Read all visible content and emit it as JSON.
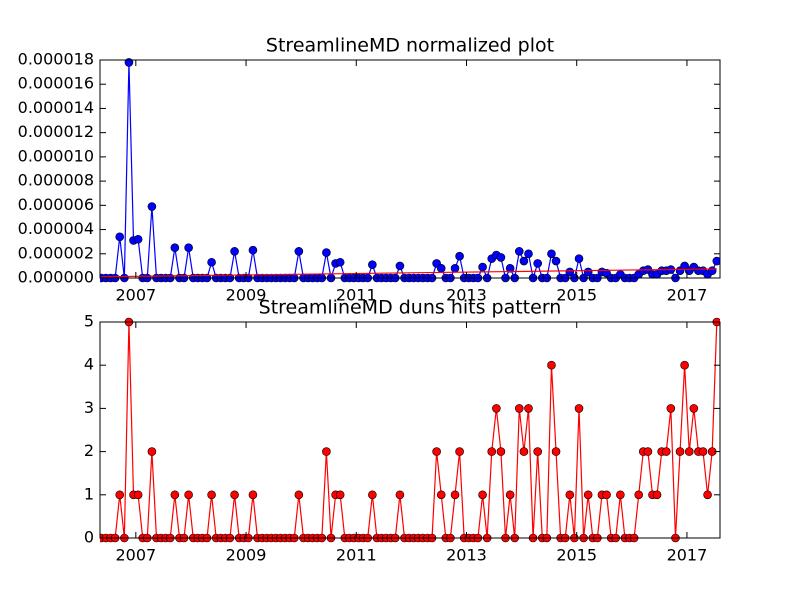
{
  "chart_data": [
    {
      "type": "line",
      "title": "StreamlineMD normalized plot",
      "x": [
        2006.375,
        2006.458,
        2006.542,
        2006.625,
        2006.708,
        2006.792,
        2006.875,
        2006.958,
        2007.042,
        2007.125,
        2007.208,
        2007.292,
        2007.375,
        2007.458,
        2007.542,
        2007.625,
        2007.708,
        2007.792,
        2007.875,
        2007.958,
        2008.042,
        2008.125,
        2008.208,
        2008.292,
        2008.375,
        2008.458,
        2008.542,
        2008.625,
        2008.708,
        2008.792,
        2008.875,
        2008.958,
        2009.042,
        2009.125,
        2009.208,
        2009.292,
        2009.375,
        2009.458,
        2009.542,
        2009.625,
        2009.708,
        2009.792,
        2009.875,
        2009.958,
        2010.042,
        2010.125,
        2010.208,
        2010.292,
        2010.375,
        2010.458,
        2010.542,
        2010.625,
        2010.708,
        2010.792,
        2010.875,
        2010.958,
        2011.042,
        2011.125,
        2011.208,
        2011.292,
        2011.375,
        2011.458,
        2011.542,
        2011.625,
        2011.708,
        2011.792,
        2011.875,
        2011.958,
        2012.042,
        2012.125,
        2012.208,
        2012.292,
        2012.375,
        2012.458,
        2012.542,
        2012.625,
        2012.708,
        2012.792,
        2012.875,
        2012.958,
        2013.042,
        2013.125,
        2013.208,
        2013.292,
        2013.375,
        2013.458,
        2013.542,
        2013.625,
        2013.708,
        2013.792,
        2013.875,
        2013.958,
        2014.042,
        2014.125,
        2014.208,
        2014.292,
        2014.375,
        2014.458,
        2014.542,
        2014.625,
        2014.708,
        2014.792,
        2014.875,
        2014.958,
        2015.042,
        2015.125,
        2015.208,
        2015.292,
        2015.375,
        2015.458,
        2015.542,
        2015.625,
        2015.708,
        2015.792,
        2015.875,
        2015.958,
        2016.042,
        2016.125,
        2016.208,
        2016.292,
        2016.375,
        2016.458,
        2016.542,
        2016.625,
        2016.708,
        2016.792,
        2016.875,
        2016.958,
        2017.042,
        2017.125,
        2017.208,
        2017.292,
        2017.375,
        2017.458,
        2017.542
      ],
      "series": [
        {
          "color": "#0000ff",
          "marker": true,
          "values": [
            0,
            0,
            0,
            0,
            3.4e-06,
            0,
            1.78e-05,
            3.1e-06,
            3.2e-06,
            0,
            0,
            5.9e-06,
            0,
            0,
            0,
            0,
            2.5e-06,
            0,
            0,
            2.5e-06,
            0,
            0,
            0,
            0,
            1.3e-06,
            0,
            0,
            0,
            0,
            2.2e-06,
            0,
            0,
            0,
            2.3e-06,
            0,
            0,
            0,
            0,
            0,
            0,
            0,
            0,
            0,
            2.2e-06,
            0,
            0,
            0,
            0,
            0,
            2.1e-06,
            0,
            1.2e-06,
            1.3e-06,
            0,
            0,
            0,
            0,
            0,
            0,
            1.1e-06,
            0,
            0,
            0,
            0,
            0,
            1e-06,
            0,
            0,
            0,
            0,
            0,
            0,
            0,
            1.2e-06,
            8e-07,
            0,
            0,
            8e-07,
            1.8e-06,
            0,
            0,
            0,
            0,
            9e-07,
            0,
            1.6e-06,
            1.9e-06,
            1.7e-06,
            0,
            8e-07,
            0,
            2.2e-06,
            1.4e-06,
            2e-06,
            0,
            1.2e-06,
            0,
            0,
            2e-06,
            1.4e-06,
            0,
            0,
            5e-07,
            0,
            1.6e-06,
            0,
            5e-07,
            0,
            0,
            5e-07,
            4e-07,
            0,
            0,
            3e-07,
            0,
            0,
            0,
            3e-07,
            6e-07,
            7e-07,
            3e-07,
            3e-07,
            6e-07,
            6e-07,
            7e-07,
            0,
            6e-07,
            1e-06,
            6e-07,
            9e-07,
            6e-07,
            6e-07,
            3e-07,
            6e-07,
            1.4e-06
          ]
        },
        {
          "color": "#ff0000",
          "marker": false,
          "x": [
            2006.375,
            2017.542
          ],
          "values": [
            1e-07,
            7.5e-07
          ]
        }
      ],
      "xlim": [
        2006.35,
        2017.6
      ],
      "xticks": [
        2007,
        2009,
        2011,
        2013,
        2015,
        2017
      ],
      "ylim": [
        0,
        1.8e-05
      ],
      "yticks": [
        {
          "value": 0,
          "label": "0.000000"
        },
        {
          "value": 2e-06,
          "label": "0.000002"
        },
        {
          "value": 4e-06,
          "label": "0.000004"
        },
        {
          "value": 6e-06,
          "label": "0.000006"
        },
        {
          "value": 8e-06,
          "label": "0.000008"
        },
        {
          "value": 1e-05,
          "label": "0.000010"
        },
        {
          "value": 1.2e-05,
          "label": "0.000012"
        },
        {
          "value": 1.4e-05,
          "label": "0.000014"
        },
        {
          "value": 1.6e-05,
          "label": "0.000016"
        },
        {
          "value": 1.8e-05,
          "label": "0.000018"
        }
      ]
    },
    {
      "type": "line",
      "title": "StreamlineMD duns hits pattern",
      "x": [
        2006.375,
        2006.458,
        2006.542,
        2006.625,
        2006.708,
        2006.792,
        2006.875,
        2006.958,
        2007.042,
        2007.125,
        2007.208,
        2007.292,
        2007.375,
        2007.458,
        2007.542,
        2007.625,
        2007.708,
        2007.792,
        2007.875,
        2007.958,
        2008.042,
        2008.125,
        2008.208,
        2008.292,
        2008.375,
        2008.458,
        2008.542,
        2008.625,
        2008.708,
        2008.792,
        2008.875,
        2008.958,
        2009.042,
        2009.125,
        2009.208,
        2009.292,
        2009.375,
        2009.458,
        2009.542,
        2009.625,
        2009.708,
        2009.792,
        2009.875,
        2009.958,
        2010.042,
        2010.125,
        2010.208,
        2010.292,
        2010.375,
        2010.458,
        2010.542,
        2010.625,
        2010.708,
        2010.792,
        2010.875,
        2010.958,
        2011.042,
        2011.125,
        2011.208,
        2011.292,
        2011.375,
        2011.458,
        2011.542,
        2011.625,
        2011.708,
        2011.792,
        2011.875,
        2011.958,
        2012.042,
        2012.125,
        2012.208,
        2012.292,
        2012.375,
        2012.458,
        2012.542,
        2012.625,
        2012.708,
        2012.792,
        2012.875,
        2012.958,
        2013.042,
        2013.125,
        2013.208,
        2013.292,
        2013.375,
        2013.458,
        2013.542,
        2013.625,
        2013.708,
        2013.792,
        2013.875,
        2013.958,
        2014.042,
        2014.125,
        2014.208,
        2014.292,
        2014.375,
        2014.458,
        2014.542,
        2014.625,
        2014.708,
        2014.792,
        2014.875,
        2014.958,
        2015.042,
        2015.125,
        2015.208,
        2015.292,
        2015.375,
        2015.458,
        2015.542,
        2015.625,
        2015.708,
        2015.792,
        2015.875,
        2015.958,
        2016.042,
        2016.125,
        2016.208,
        2016.292,
        2016.375,
        2016.458,
        2016.542,
        2016.625,
        2016.708,
        2016.792,
        2016.875,
        2016.958,
        2017.042,
        2017.125,
        2017.208,
        2017.292,
        2017.375,
        2017.458,
        2017.542
      ],
      "series": [
        {
          "color": "#ff0000",
          "marker": true,
          "values": [
            0,
            0,
            0,
            0,
            1,
            0,
            5,
            1,
            1,
            0,
            0,
            2,
            0,
            0,
            0,
            0,
            1,
            0,
            0,
            1,
            0,
            0,
            0,
            0,
            1,
            0,
            0,
            0,
            0,
            1,
            0,
            0,
            0,
            1,
            0,
            0,
            0,
            0,
            0,
            0,
            0,
            0,
            0,
            1,
            0,
            0,
            0,
            0,
            0,
            2,
            0,
            1,
            1,
            0,
            0,
            0,
            0,
            0,
            0,
            1,
            0,
            0,
            0,
            0,
            0,
            1,
            0,
            0,
            0,
            0,
            0,
            0,
            0,
            2,
            1,
            0,
            0,
            1,
            2,
            0,
            0,
            0,
            0,
            1,
            0,
            2,
            3,
            2,
            0,
            1,
            0,
            3,
            2,
            3,
            0,
            2,
            0,
            0,
            4,
            2,
            0,
            0,
            1,
            0,
            3,
            0,
            1,
            0,
            0,
            1,
            1,
            0,
            0,
            1,
            0,
            0,
            0,
            1,
            2,
            2,
            1,
            1,
            2,
            2,
            3,
            0,
            2,
            4,
            2,
            3,
            2,
            2,
            1,
            2,
            5
          ]
        }
      ],
      "xlim": [
        2006.35,
        2017.6
      ],
      "xticks": [
        2007,
        2009,
        2011,
        2013,
        2015,
        2017
      ],
      "ylim": [
        0,
        5
      ],
      "yticks": [
        0,
        1,
        2,
        3,
        4,
        5
      ]
    }
  ]
}
